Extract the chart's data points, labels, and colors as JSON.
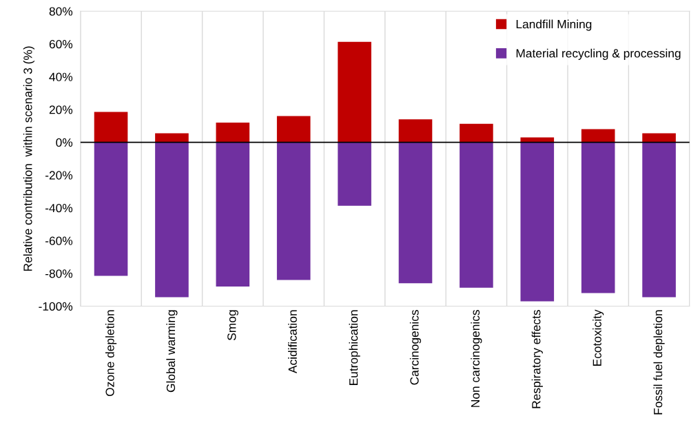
{
  "chart_data": {
    "type": "bar",
    "stacked": true,
    "ylabel": "Relative contribution  within scenario 3 (%)",
    "categories": [
      "Ozone depletion",
      "Global warming",
      "Smog",
      "Acidification",
      "Eutrophication",
      "Carcinogenics",
      "Non carcinogenics",
      "Respiratory effects",
      "Ecotoxicity",
      "Fossil fuel depletion"
    ],
    "series": [
      {
        "name": "Landfill Mining",
        "color": "#c00000",
        "values": [
          18.5,
          5.5,
          12,
          16,
          61.3,
          14,
          11.3,
          3,
          8,
          5.5
        ]
      },
      {
        "name": "Material recycling & processing",
        "color": "#7030a0",
        "values": [
          -81.5,
          -94.5,
          -88,
          -84,
          -38.7,
          -86,
          -88.7,
          -97,
          -92,
          -94.5
        ]
      }
    ],
    "ylim": [
      -100,
      80
    ],
    "yticks": [
      {
        "value": -100,
        "label": "-100%"
      },
      {
        "value": -80,
        "label": "-80%"
      },
      {
        "value": -60,
        "label": "-60%"
      },
      {
        "value": -40,
        "label": "-40%"
      },
      {
        "value": -20,
        "label": "-20%"
      },
      {
        "value": 0,
        "label": "0%"
      },
      {
        "value": 20,
        "label": "20%"
      },
      {
        "value": 40,
        "label": "40%"
      },
      {
        "value": 60,
        "label": "60%"
      },
      {
        "value": 80,
        "label": "80%"
      }
    ],
    "grid": "x",
    "legend": "top right"
  }
}
